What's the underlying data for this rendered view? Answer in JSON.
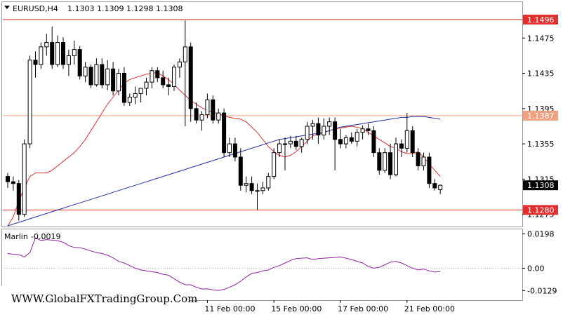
{
  "header": {
    "symbol": "EURUSD,H4",
    "ohlc": "1.1303 1.1309 1.1298 1.1308"
  },
  "indicator": {
    "label": "Marlin",
    "value": "-0.0019"
  },
  "watermark": "WWW.GlobalFXTradingGroup.Com",
  "price_tag_labels": {
    "resistance_top": "1.1496",
    "resistance_mid": "1.1387",
    "current": "1.1308",
    "support": "1.1280"
  },
  "chart_data": [
    {
      "type": "candlestick",
      "timeframe": "H4",
      "y_axis": {
        "ticks": [
          "1.1475",
          "1.1435",
          "1.1395",
          "1.1355",
          "1.1315",
          "1.1275"
        ],
        "ylim": [
          1.1262,
          1.1515
        ]
      },
      "x_axis": {
        "ticks": [
          "11 Feb 00:00",
          "15 Feb 00:00",
          "17 Feb 00:00",
          "21 Feb 00:00"
        ]
      },
      "horizontal_lines": [
        {
          "value": 1.1496,
          "color": "#e03030"
        },
        {
          "value": 1.1387,
          "color": "#f0a080"
        },
        {
          "value": 1.128,
          "color": "#e03030"
        }
      ],
      "candles": [
        [
          1.1318,
          1.1322,
          1.1305,
          1.1312
        ],
        [
          1.1312,
          1.1318,
          1.1302,
          1.131
        ],
        [
          1.131,
          1.1314,
          1.1268,
          1.1275
        ],
        [
          1.1275,
          1.136,
          1.1272,
          1.1355
        ],
        [
          1.1355,
          1.1455,
          1.135,
          1.145
        ],
        [
          1.145,
          1.146,
          1.143,
          1.1445
        ],
        [
          1.1445,
          1.147,
          1.144,
          1.1465
        ],
        [
          1.1465,
          1.148,
          1.1455,
          1.147
        ],
        [
          1.147,
          1.1488,
          1.144,
          1.1445
        ],
        [
          1.1445,
          1.1478,
          1.1442,
          1.147
        ],
        [
          1.147,
          1.1476,
          1.144,
          1.1445
        ],
        [
          1.1445,
          1.1462,
          1.1432,
          1.1455
        ],
        [
          1.1455,
          1.1472,
          1.1445,
          1.1462
        ],
        [
          1.1462,
          1.1466,
          1.1428,
          1.1432
        ],
        [
          1.1432,
          1.1448,
          1.1425,
          1.1442
        ],
        [
          1.1442,
          1.1445,
          1.1418,
          1.1422
        ],
        [
          1.1422,
          1.1452,
          1.142,
          1.1445
        ],
        [
          1.1445,
          1.1452,
          1.1418,
          1.1422
        ],
        [
          1.1422,
          1.145,
          1.1416,
          1.144
        ],
        [
          1.144,
          1.1448,
          1.141,
          1.1415
        ],
        [
          1.1415,
          1.144,
          1.141,
          1.1435
        ],
        [
          1.1435,
          1.1442,
          1.1398,
          1.1402
        ],
        [
          1.1402,
          1.1412,
          1.1398,
          1.1408
        ],
        [
          1.1408,
          1.142,
          1.14,
          1.1412
        ],
        [
          1.1412,
          1.1418,
          1.1402,
          1.1418
        ],
        [
          1.1418,
          1.143,
          1.141,
          1.1425
        ],
        [
          1.1425,
          1.1442,
          1.1418,
          1.1438
        ],
        [
          1.1438,
          1.1442,
          1.1425,
          1.143
        ],
        [
          1.143,
          1.1438,
          1.1418,
          1.1422
        ],
        [
          1.1422,
          1.143,
          1.141,
          1.142
        ],
        [
          1.142,
          1.1445,
          1.1415,
          1.1442
        ],
        [
          1.1442,
          1.1452,
          1.143,
          1.1448
        ],
        [
          1.1448,
          1.1495,
          1.1375,
          1.1465
        ],
        [
          1.1465,
          1.147,
          1.138,
          1.1395
        ],
        [
          1.1395,
          1.1402,
          1.1378,
          1.1382
        ],
        [
          1.1382,
          1.1392,
          1.137,
          1.1388
        ],
        [
          1.1388,
          1.1412,
          1.1384,
          1.1405
        ],
        [
          1.1405,
          1.141,
          1.1378,
          1.1382
        ],
        [
          1.1382,
          1.1395,
          1.1378,
          1.139
        ],
        [
          1.139,
          1.1395,
          1.134,
          1.1345
        ],
        [
          1.1345,
          1.1362,
          1.134,
          1.1355
        ],
        [
          1.1355,
          1.1362,
          1.1335,
          1.134
        ],
        [
          1.134,
          1.135,
          1.1302,
          1.1308
        ],
        [
          1.1308,
          1.1318,
          1.13,
          1.131
        ],
        [
          1.131,
          1.1318,
          1.1298,
          1.1302
        ],
        [
          1.1302,
          1.131,
          1.128,
          1.1302
        ],
        [
          1.1302,
          1.1312,
          1.1298,
          1.1305
        ],
        [
          1.1305,
          1.1322,
          1.1302,
          1.1318
        ],
        [
          1.1318,
          1.135,
          1.1315,
          1.1345
        ],
        [
          1.1345,
          1.136,
          1.134,
          1.1355
        ],
        [
          1.1355,
          1.1362,
          1.1325,
          1.1355
        ],
        [
          1.1355,
          1.1364,
          1.135,
          1.1358
        ],
        [
          1.1358,
          1.1364,
          1.1348,
          1.1352
        ],
        [
          1.1352,
          1.1362,
          1.1345,
          1.136
        ],
        [
          1.136,
          1.138,
          1.1355,
          1.1375
        ],
        [
          1.1375,
          1.1382,
          1.136,
          1.1378
        ],
        [
          1.1378,
          1.1385,
          1.1355,
          1.1365
        ],
        [
          1.1365,
          1.1384,
          1.136,
          1.1375
        ],
        [
          1.1375,
          1.1385,
          1.1365,
          1.138
        ],
        [
          1.138,
          1.1385,
          1.1325,
          1.136
        ],
        [
          1.136,
          1.1372,
          1.135,
          1.1355
        ],
        [
          1.1355,
          1.1365,
          1.135,
          1.1362
        ],
        [
          1.1362,
          1.1368,
          1.1355,
          1.1358
        ],
        [
          1.1358,
          1.1372,
          1.1352,
          1.1368
        ],
        [
          1.1368,
          1.1376,
          1.136,
          1.1372
        ],
        [
          1.1372,
          1.1378,
          1.1365,
          1.137
        ],
        [
          1.137,
          1.1375,
          1.134,
          1.1345
        ],
        [
          1.1345,
          1.135,
          1.132,
          1.1325
        ],
        [
          1.1325,
          1.135,
          1.1322,
          1.1345
        ],
        [
          1.1345,
          1.1355,
          1.1315,
          1.132
        ],
        [
          1.132,
          1.1362,
          1.1318,
          1.1355
        ],
        [
          1.1355,
          1.136,
          1.134,
          1.135
        ],
        [
          1.135,
          1.139,
          1.1345,
          1.137
        ],
        [
          1.137,
          1.1375,
          1.134,
          1.1345
        ],
        [
          1.1345,
          1.135,
          1.1325,
          1.133
        ],
        [
          1.133,
          1.1345,
          1.1325,
          1.134
        ],
        [
          1.134,
          1.1345,
          1.1305,
          1.131
        ],
        [
          1.131,
          1.1315,
          1.1302,
          1.1305
        ],
        [
          1.1303,
          1.1309,
          1.1298,
          1.1308
        ]
      ],
      "moving_averages": [
        {
          "color": "#e03030",
          "values": [
            1.1262,
            1.1272,
            1.129,
            1.1305,
            1.1318,
            1.1322,
            1.1322,
            1.1322,
            1.1325,
            1.133,
            1.1335,
            1.134,
            1.1345,
            1.1352,
            1.136,
            1.137,
            1.138,
            1.139,
            1.14,
            1.1408,
            1.1416,
            1.1424,
            1.1428,
            1.143,
            1.1432,
            1.1434,
            1.1435,
            1.1436,
            1.1432,
            1.1428,
            1.1422,
            1.1416,
            1.141,
            1.1404,
            1.14,
            1.1396,
            1.1393,
            1.1391,
            1.1389,
            1.1387,
            1.1385,
            1.1384,
            1.1383,
            1.138,
            1.1374,
            1.1368,
            1.136,
            1.1352,
            1.1346,
            1.1342,
            1.134,
            1.1342,
            1.1346,
            1.1352,
            1.1358,
            1.1364,
            1.1366,
            1.1368,
            1.137,
            1.1372,
            1.1373,
            1.1374,
            1.1375,
            1.1374,
            1.1372,
            1.1368,
            1.1364,
            1.136,
            1.1356,
            1.1352,
            1.135,
            1.1346,
            1.1344,
            1.1344,
            1.1346,
            1.134,
            1.1332,
            1.1325,
            1.1318
          ]
        },
        {
          "color": "#2030a0",
          "values": [
            1.1262,
            1.1264,
            1.1266,
            1.1268,
            1.127,
            1.1272,
            1.1274,
            1.1276,
            1.1278,
            1.128,
            1.1282,
            1.1284,
            1.1286,
            1.1288,
            1.129,
            1.1292,
            1.1294,
            1.1296,
            1.1298,
            1.13,
            1.1302,
            1.1304,
            1.1306,
            1.1308,
            1.131,
            1.1312,
            1.1314,
            1.1316,
            1.1318,
            1.132,
            1.1322,
            1.1324,
            1.1326,
            1.1328,
            1.133,
            1.1332,
            1.1334,
            1.1336,
            1.1338,
            1.134,
            1.1342,
            1.1344,
            1.1346,
            1.1348,
            1.135,
            1.1352,
            1.1354,
            1.1356,
            1.1358,
            1.136,
            1.1361,
            1.1362,
            1.1363,
            1.1364,
            1.1365,
            1.1366,
            1.1367,
            1.1368,
            1.137,
            1.1372,
            1.1374,
            1.1375,
            1.1376,
            1.1377,
            1.1378,
            1.1379,
            1.138,
            1.1381,
            1.1382,
            1.1383,
            1.1384,
            1.1385,
            1.1385,
            1.1386,
            1.1386,
            1.1386,
            1.1385,
            1.1384,
            1.1383
          ]
        }
      ]
    },
    {
      "type": "line",
      "name": "Marlin",
      "color": "#9020a0",
      "y_axis": {
        "ticks": [
          "0.0198",
          "0.00",
          "-0.0129"
        ],
        "ylim": [
          -0.018,
          0.022
        ]
      },
      "zero_line": 0,
      "values": [
        0.0085,
        0.008,
        0.0078,
        0.0065,
        0.009,
        0.0175,
        0.016,
        0.0165,
        0.0162,
        0.0158,
        0.015,
        0.013,
        0.012,
        0.0118,
        0.011,
        0.01,
        0.009,
        0.0085,
        0.0075,
        0.006,
        0.004,
        0.003,
        0.0015,
        0.0,
        -0.001,
        -0.0015,
        -0.002,
        -0.0025,
        -0.0035,
        -0.004,
        -0.006,
        -0.008,
        -0.0095,
        -0.0095,
        -0.011,
        -0.012,
        -0.0118,
        -0.0125,
        -0.0128,
        -0.0122,
        -0.011,
        -0.0095,
        -0.0075,
        -0.005,
        -0.003,
        -0.0025,
        -0.0015,
        -0.001,
        0.0005,
        0.0015,
        0.003,
        0.0045,
        0.0055,
        0.0058,
        0.006,
        0.005,
        0.0055,
        0.0058,
        0.006,
        0.0062,
        0.0065,
        0.0058,
        0.005,
        0.004,
        0.003,
        0.001,
        0.0,
        0.0005,
        0.002,
        0.0035,
        0.004,
        0.003,
        0.0015,
        0.0,
        -0.001,
        -0.0005,
        -0.0015,
        -0.0022,
        -0.0019
      ]
    }
  ]
}
